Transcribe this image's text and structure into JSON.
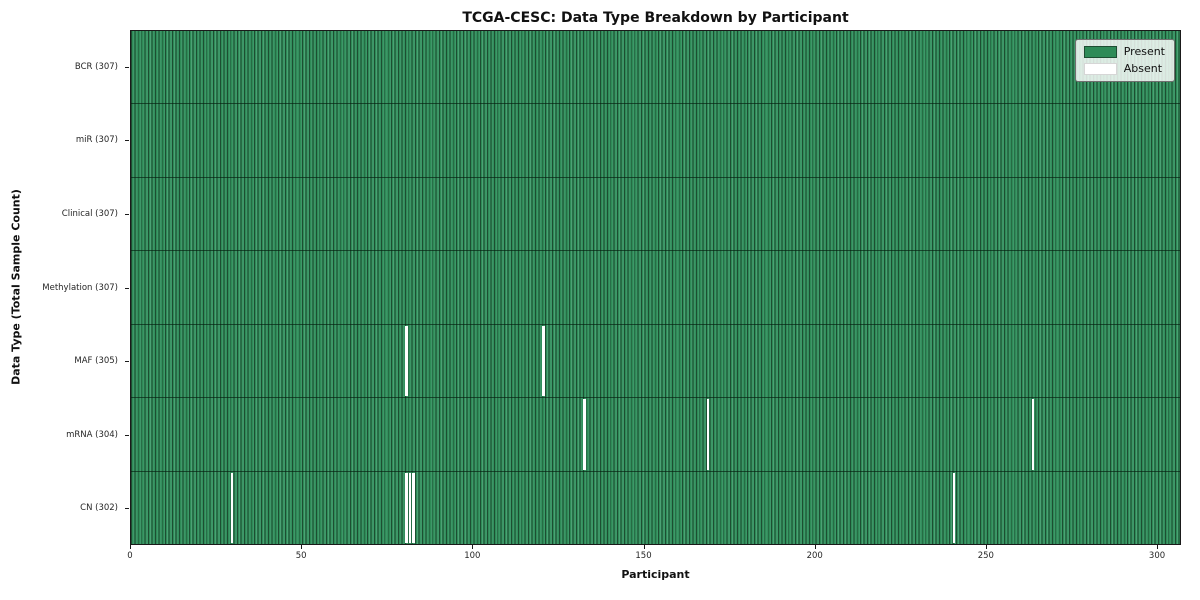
{
  "title": "TCGA-CESC: Data Type Breakdown by Participant",
  "xlabel": "Participant",
  "ylabel": "Data Type (Total Sample Count)",
  "legend": {
    "position": "upper right",
    "present_label": "Present",
    "absent_label": "Absent"
  },
  "colors": {
    "present": "#2e8b57",
    "present_edge": "#1d4e32",
    "absent": "#ffffff",
    "axis": "#1a1a1a"
  },
  "chart_data": {
    "type": "heatmap",
    "title": "TCGA-CESC: Data Type Breakdown by Participant",
    "xlabel": "Participant",
    "ylabel": "Data Type (Total Sample Count)",
    "n_participants": 307,
    "xlim": [
      0,
      307
    ],
    "x_ticks": [
      0,
      50,
      100,
      150,
      200,
      250,
      300
    ],
    "grid": false,
    "legend_entries": [
      "Present",
      "Absent"
    ],
    "rows": [
      {
        "label": "BCR (307)",
        "data_type": "BCR",
        "present_count": 307,
        "absent_participants": []
      },
      {
        "label": "miR (307)",
        "data_type": "miR",
        "present_count": 307,
        "absent_participants": []
      },
      {
        "label": "Clinical (307)",
        "data_type": "Clinical",
        "present_count": 307,
        "absent_participants": []
      },
      {
        "label": "Methylation (307)",
        "data_type": "Methylation",
        "present_count": 307,
        "absent_participants": []
      },
      {
        "label": "MAF (305)",
        "data_type": "MAF",
        "present_count": 305,
        "absent_participants": [
          80,
          120
        ]
      },
      {
        "label": "mRNA (304)",
        "data_type": "mRNA",
        "present_count": 304,
        "absent_participants": [
          132,
          168,
          263
        ]
      },
      {
        "label": "CN (302)",
        "data_type": "CN",
        "present_count": 302,
        "absent_participants": [
          29,
          80,
          81,
          82,
          240
        ]
      }
    ]
  }
}
